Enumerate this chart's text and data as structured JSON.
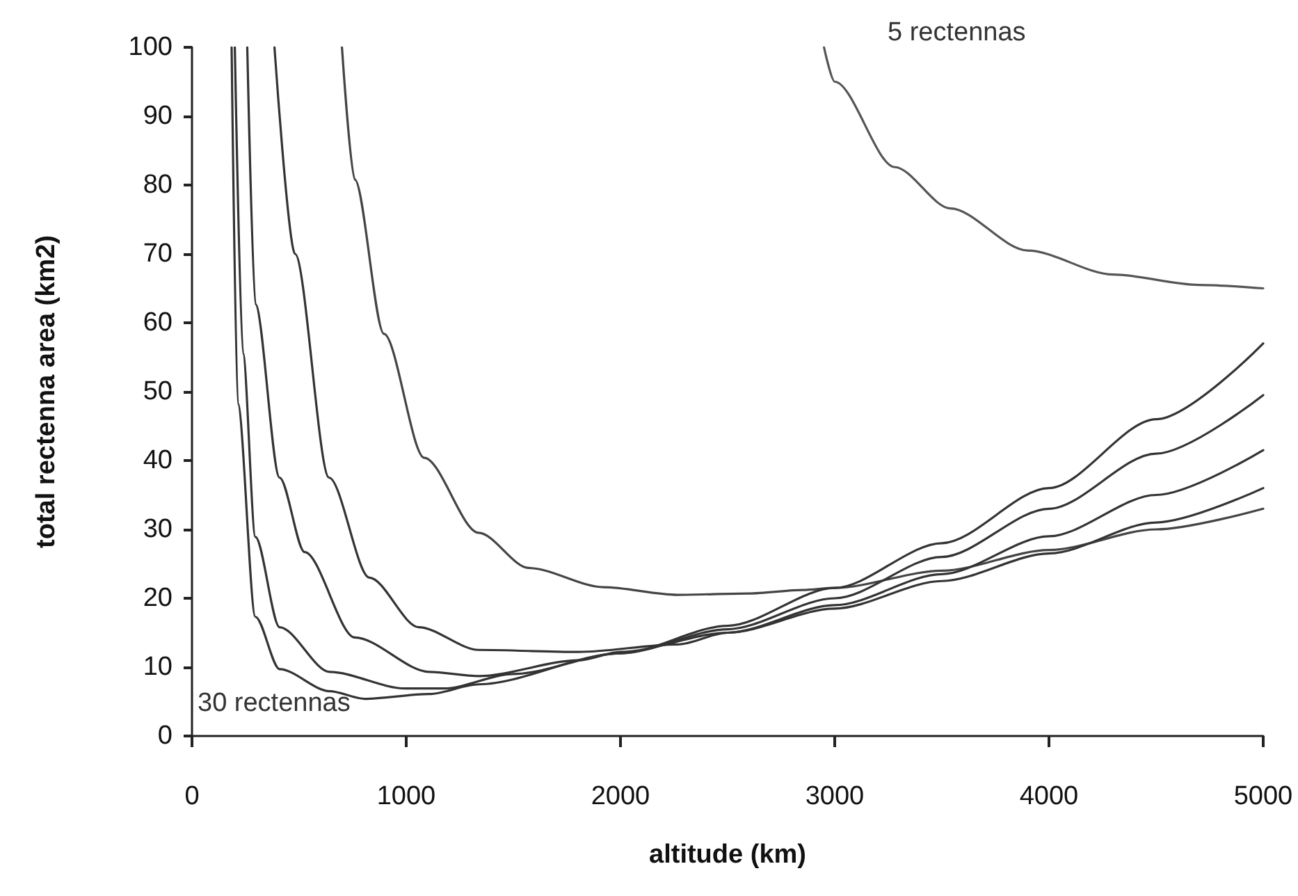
{
  "chart_data": {
    "type": "line",
    "xlabel": "altitude (km)",
    "ylabel": "total rectenna area (km2)",
    "xlim": [
      0,
      5000
    ],
    "xticks": [
      0,
      1000,
      2000,
      3000,
      4000,
      5000
    ],
    "ylim": [
      0,
      100
    ],
    "yticks": [
      0,
      10,
      20,
      30,
      40,
      50,
      60,
      70,
      80,
      90,
      100
    ],
    "grid": false,
    "marker": "none",
    "line_style": "solid",
    "annotations": [
      "5 rectennas",
      "30 rectennas"
    ],
    "series": [
      {
        "color": "#555555",
        "x": [
          2950,
          3000,
          3280,
          3540,
          3900,
          4300,
          4700,
          5000
        ],
        "values": [
          100,
          95,
          82.6,
          76.6,
          70.5,
          67,
          65.5,
          65
        ]
      },
      {
        "color": "#444444",
        "x": [
          700,
          760,
          896,
          1084,
          1338,
          1571,
          1922,
          2266,
          2600,
          2850,
          3000,
          3500,
          4000,
          4500,
          5000
        ],
        "values": [
          100,
          80.8,
          58.4,
          40.4,
          29.5,
          24.4,
          21.6,
          20.5,
          20.7,
          21.2,
          21.5,
          24,
          27,
          30,
          33
        ]
      },
      {
        "color": "#333333",
        "x": [
          385,
          481,
          640,
          828,
          1058,
          1338,
          1805,
          2266,
          2500,
          3000,
          3500,
          4000,
          4500,
          5000
        ],
        "values": [
          100,
          70,
          37.5,
          23,
          15.8,
          12.5,
          12.2,
          13.3,
          15,
          18.5,
          22.5,
          26.5,
          31,
          36
        ]
      },
      {
        "color": "#333333",
        "x": [
          258,
          296,
          409,
          526,
          760,
          1108,
          1338,
          1805,
          2000,
          2500,
          3000,
          3500,
          4000,
          4500,
          5000
        ],
        "values": [
          100,
          62.7,
          37.5,
          26.7,
          14.3,
          9.3,
          8.7,
          11,
          12.2,
          15,
          19,
          23.5,
          29,
          35,
          41.5
        ]
      },
      {
        "color": "#333333",
        "x": [
          200,
          238,
          296,
          409,
          643,
          994,
          1175,
          1500,
          2000,
          2500,
          3000,
          3500,
          4000,
          4500,
          5000
        ],
        "values": [
          100,
          55.6,
          28.9,
          15.8,
          9.3,
          6.9,
          6.9,
          9,
          12,
          15.5,
          20,
          26,
          33,
          41,
          49.5
        ]
      },
      {
        "color": "#333333",
        "x": [
          185,
          214,
          296,
          409,
          643,
          805,
          1108,
          1338,
          2000,
          2500,
          3000,
          3500,
          4000,
          4500,
          5000
        ],
        "values": [
          100,
          48.3,
          17.3,
          9.7,
          6.5,
          5.4,
          6.1,
          7.5,
          12,
          16,
          21.5,
          28,
          36,
          46,
          57
        ]
      }
    ]
  }
}
